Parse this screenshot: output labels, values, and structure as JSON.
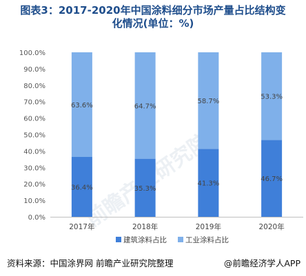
{
  "title_line1": "图表3：2017-2020年中国涂料细分市场产量占比结构变",
  "title_line2": "化情况(单位：%)",
  "source": "资料来源：中国涂界网 前瞻产业研究院整理",
  "brand": "@前瞻经济学人APP",
  "watermark": "前瞻产业研究院",
  "chart_data": {
    "type": "bar",
    "stacked": true,
    "categories": [
      "2017年",
      "2018年",
      "2019年",
      "2020年"
    ],
    "series": [
      {
        "name": "建筑涂料占比",
        "values": [
          36.4,
          35.3,
          41.3,
          46.7
        ],
        "labels": [
          "36.4%",
          "35.3%",
          "41.3%",
          "46.7%"
        ],
        "color": "#3f7fd9"
      },
      {
        "name": "工业涂料占比",
        "values": [
          63.6,
          64.7,
          58.7,
          53.3
        ],
        "labels": [
          "63.6%",
          "64.7%",
          "58.7%",
          "53.3%"
        ],
        "color": "#7fb0ea"
      }
    ],
    "yticks": [
      "0.0%",
      "10.0%",
      "20.0%",
      "30.0%",
      "40.0%",
      "50.0%",
      "60.0%",
      "70.0%",
      "80.0%",
      "90.0%",
      "100.0%"
    ],
    "ylim": [
      0,
      100
    ],
    "grid": false,
    "legend_position": "bottom"
  }
}
